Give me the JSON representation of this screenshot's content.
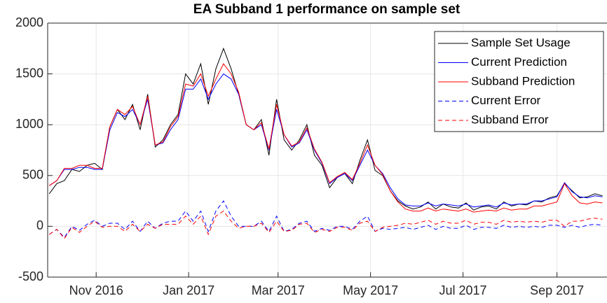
{
  "chart_data": {
    "type": "line",
    "title": "EA Subband 1 performance on sample set",
    "x": [
      0,
      5,
      10,
      15,
      20,
      25,
      30,
      35,
      40,
      45,
      50,
      55,
      60,
      65,
      70,
      75,
      80,
      85,
      90,
      95,
      100,
      105,
      110,
      115,
      120,
      125,
      130,
      135,
      140,
      145,
      150,
      155,
      160,
      165,
      170,
      175,
      180,
      185,
      190,
      195,
      200,
      205,
      210,
      215,
      220,
      225,
      230,
      235,
      240,
      245,
      250,
      255,
      260,
      265,
      270,
      275,
      280,
      285,
      290,
      295,
      300,
      305,
      310,
      315,
      320,
      325,
      330,
      335,
      340,
      345,
      350,
      355,
      360,
      365
    ],
    "xlim": [
      -1,
      368
    ],
    "xticks": [
      {
        "value": 31,
        "label": "Nov 2016"
      },
      {
        "value": 92,
        "label": "Jan 2017"
      },
      {
        "value": 151,
        "label": "Mar 2017"
      },
      {
        "value": 212,
        "label": "May 2017"
      },
      {
        "value": 273,
        "label": "Jul 2017"
      },
      {
        "value": 335,
        "label": "Sep 2017"
      }
    ],
    "ylim": [
      -500,
      2000
    ],
    "yticks": [
      -500,
      0,
      500,
      1000,
      1500,
      2000
    ],
    "grid": true,
    "legend": "upper right",
    "series": [
      {
        "name": "Sample Set Usage",
        "color": "#000000",
        "linestyle": "solid",
        "values": [
          320,
          420,
          450,
          560,
          540,
          600,
          620,
          560,
          980,
          1150,
          1050,
          1200,
          950,
          1300,
          780,
          850,
          1000,
          1100,
          1500,
          1400,
          1600,
          1200,
          1550,
          1750,
          1550,
          1300,
          1000,
          950,
          1050,
          700,
          1250,
          850,
          750,
          850,
          1000,
          700,
          600,
          380,
          480,
          520,
          420,
          650,
          850,
          550,
          500,
          350,
          250,
          200,
          170,
          190,
          240,
          170,
          220,
          190,
          180,
          230,
          160,
          190,
          200,
          170,
          240,
          200,
          220,
          210,
          250,
          240,
          280,
          300,
          420,
          350,
          280,
          290,
          320,
          300
        ]
      },
      {
        "name": "Current Prediction",
        "color": "#0000ff",
        "linestyle": "solid",
        "values": [
          400,
          450,
          560,
          560,
          580,
          580,
          560,
          560,
          950,
          1120,
          1080,
          1150,
          1000,
          1250,
          800,
          820,
          950,
          1050,
          1350,
          1350,
          1450,
          1250,
          1400,
          1500,
          1450,
          1300,
          1000,
          950,
          1000,
          750,
          1150,
          900,
          780,
          820,
          950,
          750,
          620,
          420,
          480,
          520,
          450,
          600,
          750,
          600,
          520,
          380,
          270,
          210,
          200,
          200,
          230,
          200,
          220,
          210,
          200,
          220,
          190,
          200,
          210,
          190,
          230,
          210,
          220,
          220,
          250,
          250,
          270,
          290,
          430,
          340,
          290,
          280,
          300,
          290
        ]
      },
      {
        "name": "Subband Prediction",
        "color": "#ff0000",
        "linestyle": "solid",
        "values": [
          400,
          450,
          570,
          570,
          600,
          600,
          570,
          570,
          980,
          1150,
          1100,
          1180,
          1000,
          1280,
          800,
          830,
          980,
          1080,
          1400,
          1380,
          1500,
          1280,
          1450,
          1600,
          1500,
          1320,
          1000,
          950,
          1020,
          760,
          1200,
          900,
          790,
          830,
          970,
          760,
          630,
          430,
          490,
          530,
          460,
          620,
          800,
          600,
          510,
          350,
          240,
          170,
          150,
          150,
          180,
          150,
          170,
          160,
          150,
          170,
          140,
          150,
          160,
          150,
          180,
          160,
          170,
          170,
          200,
          200,
          220,
          240,
          420,
          300,
          230,
          220,
          240,
          230
        ]
      },
      {
        "name": "Current Error",
        "color": "#0000ff",
        "linestyle": "dashed",
        "values": [
          -80,
          -30,
          -110,
          0,
          -40,
          20,
          60,
          0,
          30,
          30,
          -30,
          50,
          -50,
          50,
          -20,
          30,
          50,
          50,
          150,
          50,
          150,
          -50,
          150,
          250,
          100,
          0,
          0,
          0,
          50,
          -50,
          100,
          -50,
          -30,
          30,
          50,
          -50,
          -20,
          -40,
          0,
          0,
          -30,
          50,
          100,
          -50,
          -20,
          -30,
          -20,
          -10,
          -30,
          -10,
          10,
          -30,
          0,
          -20,
          -20,
          10,
          -30,
          -10,
          -10,
          -20,
          10,
          -10,
          0,
          -10,
          0,
          -10,
          10,
          10,
          -10,
          10,
          -10,
          10,
          20,
          10
        ]
      },
      {
        "name": "Subband Error",
        "color": "#ff0000",
        "linestyle": "dashed",
        "values": [
          -80,
          -30,
          -120,
          -10,
          -60,
          0,
          50,
          -10,
          0,
          0,
          -50,
          20,
          -50,
          20,
          -20,
          20,
          20,
          20,
          100,
          20,
          100,
          -80,
          100,
          150,
          50,
          -20,
          0,
          0,
          30,
          -60,
          50,
          -50,
          -40,
          20,
          30,
          -60,
          -30,
          -50,
          -10,
          -10,
          -40,
          30,
          50,
          -50,
          -10,
          0,
          10,
          30,
          20,
          40,
          60,
          20,
          50,
          30,
          30,
          60,
          20,
          40,
          40,
          20,
          60,
          40,
          50,
          40,
          50,
          40,
          60,
          60,
          0,
          50,
          50,
          70,
          80,
          70
        ]
      }
    ]
  }
}
